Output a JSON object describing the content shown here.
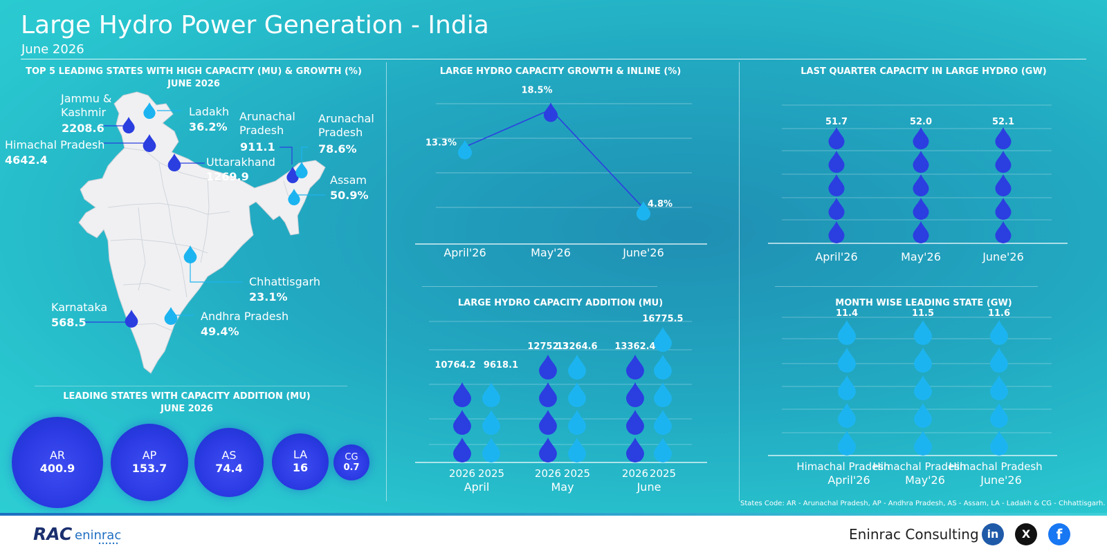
{
  "header": {
    "title": "Large Hydro Power Generation - India",
    "subtitle": "June 2026"
  },
  "map_section": {
    "title_line1": "TOP 5 LEADING STATES WITH HIGH CAPACITY (MU) & GROWTH (%)",
    "title_line2": "JUNE 2026",
    "states": [
      {
        "name": "Jammu & Kashmir",
        "line1": "Jammu &",
        "line2": "Kashmir",
        "value": "2208.6"
      },
      {
        "name": "Ladakh",
        "value": "36.2%"
      },
      {
        "name": "Himachal Pradesh",
        "value": "4642.4"
      },
      {
        "name": "Arunachal Pradesh",
        "line1": "Arunachal",
        "line2": "Pradesh",
        "value": "911.1"
      },
      {
        "name": "Arunachal Pradesh",
        "line1": "Arunachal",
        "line2": "Pradesh",
        "value": "78.6%"
      },
      {
        "name": "Uttarakhand",
        "value": "1269.9"
      },
      {
        "name": "Assam",
        "value": "50.9%"
      },
      {
        "name": "Chhattisgarh",
        "value": "23.1%"
      },
      {
        "name": "Karnataka",
        "value": "568.5"
      },
      {
        "name": "Andhra Pradesh",
        "value": "49.4%"
      }
    ]
  },
  "bubbles_section": {
    "title_line1": "LEADING STATES WITH CAPACITY ADDITION (MU)",
    "title_line2": "JUNE 2026",
    "items": [
      {
        "code": "AR",
        "value": "400.9"
      },
      {
        "code": "AP",
        "value": "153.7"
      },
      {
        "code": "AS",
        "value": "74.4"
      },
      {
        "code": "LA",
        "value": "16"
      },
      {
        "code": "CG",
        "value": "0.7"
      }
    ]
  },
  "colors": {
    "drop_dark": "#2b3ee0",
    "drop_light": "#1cb4f0",
    "background": "#25b9c9"
  },
  "chart_data": [
    {
      "type": "line",
      "title": "LARGE HYDRO CAPACITY GROWTH & INLINE (%)",
      "categories": [
        "April'26",
        "May'26",
        "June'26"
      ],
      "values": [
        13.3,
        18.5,
        4.8
      ],
      "labels": [
        "13.3%",
        "18.5%",
        "4.8%"
      ],
      "ylim": [
        0,
        22
      ]
    },
    {
      "type": "bar",
      "title": "LAST QUARTER CAPACITY IN LARGE HYDRO (GW)",
      "categories": [
        "April'26",
        "May'26",
        "June'26"
      ],
      "values": [
        51.7,
        52.0,
        52.1
      ],
      "labels": [
        "51.7",
        "52.0",
        "52.1"
      ]
    },
    {
      "type": "bar",
      "title": "LARGE HYDRO CAPACITY ADDITION (MU)",
      "categories": [
        "April",
        "May",
        "June"
      ],
      "series": [
        {
          "name": "2026",
          "values": [
            10764.2,
            12752.3,
            13362.4
          ],
          "labels": [
            "10764.2",
            "12752.3",
            "13362.4"
          ]
        },
        {
          "name": "2025",
          "values": [
            9618.1,
            13264.6,
            16775.5
          ],
          "labels": [
            "9618.1",
            "13264.6",
            "16775.5"
          ]
        }
      ]
    },
    {
      "type": "bar",
      "title": "MONTH WISE LEADING STATE (GW)",
      "categories": [
        "April'26",
        "May'26",
        "June'26"
      ],
      "states": [
        "Himachal Pradesh",
        "Himachal Pradesh",
        "Himachal Pradesh"
      ],
      "values": [
        11.4,
        11.5,
        11.6
      ],
      "labels": [
        "11.4",
        "11.5",
        "11.6"
      ]
    }
  ],
  "footnote": "States Code: AR - Arunachal Pradesh, AP - Andhra Pradesh, AS - Assam, LA - Ladakh & CG - Chhattisgarh.",
  "footer": {
    "logo_text": "RAC eninrac",
    "company": "Eninrac Consulting",
    "social": [
      {
        "name": "linkedin-icon",
        "label": "in"
      },
      {
        "name": "x-icon",
        "label": "X"
      },
      {
        "name": "facebook-icon",
        "label": "f"
      }
    ]
  }
}
